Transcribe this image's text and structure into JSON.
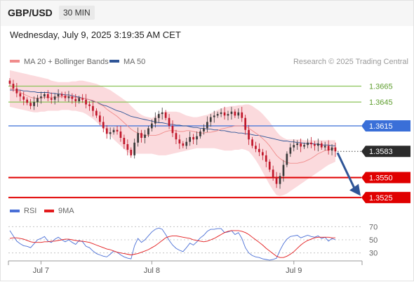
{
  "header": {
    "symbol": "GBP/USD",
    "timeframe": "30 MIN",
    "datetime": "Wednesday, July 9, 2025 3:19:35 AM CET"
  },
  "legend": {
    "ma20": {
      "label": "MA 20 + Bollinger Bands",
      "color": "#f08c8c"
    },
    "ma50": {
      "label": "MA 50",
      "color": "#2f5597"
    },
    "copyright": "Research © 2025 Trading Central"
  },
  "rsi_legend": {
    "rsi": {
      "label": "RSI",
      "color": "#4a6fd6"
    },
    "ma9": {
      "label": "9MA",
      "color": "#e31a1c"
    }
  },
  "colors": {
    "up_candle": "#3a3a3a",
    "down_candle": "#c0172a",
    "band_fill": "#fbdadd",
    "resistance_green": "#8cc35a",
    "pivot_blue": "#3a6fd8",
    "support_red": "#e00000",
    "arrow": "#2f5597"
  },
  "chart_data": [
    {
      "type": "candlestick",
      "x_labels": [
        "Jul 7",
        "Jul 8",
        "Jul 9"
      ],
      "ylim": [
        1.3516,
        1.3684
      ],
      "levels": [
        {
          "value": 1.3665,
          "label": "1.3665",
          "kind": "resistance"
        },
        {
          "value": 1.3645,
          "label": "1.3645",
          "kind": "resistance"
        },
        {
          "value": 1.3615,
          "label": "1.3615",
          "kind": "pivot"
        },
        {
          "value": 1.3583,
          "label": "1.3583",
          "kind": "last"
        },
        {
          "value": 1.355,
          "label": "1.3550",
          "kind": "support"
        },
        {
          "value": 1.3525,
          "label": "1.3525",
          "kind": "support"
        }
      ],
      "close": [
        1.3668,
        1.3662,
        1.3656,
        1.3652,
        1.3648,
        1.3644,
        1.364,
        1.3645,
        1.365,
        1.3652,
        1.3655,
        1.365,
        1.3648,
        1.3652,
        1.3655,
        1.3653,
        1.365,
        1.3652,
        1.3649,
        1.3646,
        1.365,
        1.3648,
        1.3642,
        1.364,
        1.3634,
        1.3628,
        1.362,
        1.3612,
        1.3605,
        1.3607,
        1.361,
        1.3608,
        1.36,
        1.3592,
        1.3585,
        1.3578,
        1.3594,
        1.3606,
        1.36,
        1.3604,
        1.3612,
        1.3618,
        1.3625,
        1.363,
        1.3632,
        1.3625,
        1.3615,
        1.3606,
        1.3598,
        1.3593,
        1.359,
        1.3595,
        1.3601,
        1.3598,
        1.3602,
        1.3608,
        1.3612,
        1.362,
        1.3626,
        1.3628,
        1.363,
        1.3632,
        1.3628,
        1.363,
        1.3633,
        1.3628,
        1.3632,
        1.3625,
        1.361,
        1.3598,
        1.359,
        1.3586,
        1.3582,
        1.3578,
        1.357,
        1.356,
        1.355,
        1.3542,
        1.3552,
        1.3566,
        1.358,
        1.3588,
        1.3591,
        1.3593,
        1.3589,
        1.3591,
        1.3594,
        1.3592,
        1.359,
        1.3593,
        1.3588,
        1.359,
        1.3584,
        1.3588,
        1.3583
      ],
      "ma20": [
        1.3662,
        1.3661,
        1.3659,
        1.3657,
        1.3655,
        1.3653,
        1.3651,
        1.365,
        1.365,
        1.365,
        1.3651,
        1.3651,
        1.3651,
        1.3651,
        1.3651,
        1.3652,
        1.3652,
        1.3652,
        1.3651,
        1.3651,
        1.365,
        1.365,
        1.3649,
        1.3648,
        1.3647,
        1.3645,
        1.3642,
        1.364,
        1.3636,
        1.3633,
        1.363,
        1.3627,
        1.3623,
        1.3619,
        1.3615,
        1.3611,
        1.3608,
        1.3606,
        1.3604,
        1.3603,
        1.3603,
        1.3603,
        1.3603,
        1.3604,
        1.3606,
        1.3608,
        1.3609,
        1.3609,
        1.3609,
        1.3608,
        1.3608,
        1.3609,
        1.3609,
        1.3608,
        1.3607,
        1.3606,
        1.3606,
        1.3607,
        1.3607,
        1.3608,
        1.3609,
        1.3611,
        1.3612,
        1.3613,
        1.3614,
        1.3615,
        1.3615,
        1.3615,
        1.3614,
        1.3612,
        1.3609,
        1.3606,
        1.3603,
        1.3599,
        1.3595,
        1.359,
        1.3584,
        1.3578,
        1.3574,
        1.3571,
        1.3569,
        1.3568,
        1.3568,
        1.3568,
        1.3569,
        1.357,
        1.3572,
        1.3574,
        1.3577,
        1.358,
        1.3582,
        1.3584,
        1.3585,
        1.3586,
        1.3587
      ],
      "ma50": [
        1.366,
        1.366,
        1.366,
        1.366,
        1.3659,
        1.3659,
        1.3658,
        1.3658,
        1.3657,
        1.3657,
        1.3657,
        1.3657,
        1.3656,
        1.3656,
        1.3655,
        1.3655,
        1.3654,
        1.3654,
        1.3653,
        1.3652,
        1.3651,
        1.365,
        1.3649,
        1.3648,
        1.3646,
        1.3645,
        1.3643,
        1.3641,
        1.364,
        1.3638,
        1.3636,
        1.3634,
        1.3633,
        1.3631,
        1.3629,
        1.3627,
        1.3626,
        1.3625,
        1.3624,
        1.3623,
        1.3622,
        1.3621,
        1.362,
        1.3619,
        1.3619,
        1.3618,
        1.3617,
        1.3617,
        1.3616,
        1.3616,
        1.3615,
        1.3615,
        1.3614,
        1.3613,
        1.3613,
        1.3612,
        1.3612,
        1.3611,
        1.3611,
        1.361,
        1.361,
        1.3609,
        1.3609,
        1.3608,
        1.3607,
        1.3607,
        1.3606,
        1.3606,
        1.3605,
        1.3605,
        1.3604,
        1.3603,
        1.3603,
        1.3602,
        1.3601,
        1.36,
        1.3599,
        1.3598,
        1.3597,
        1.3596,
        1.3596,
        1.3595,
        1.3595,
        1.3594,
        1.3594,
        1.3593,
        1.3593,
        1.3593,
        1.3592,
        1.3592,
        1.3591,
        1.3591,
        1.3591,
        1.359,
        1.359
      ],
      "bb_upper": [
        1.3685,
        1.3684,
        1.3683,
        1.3682,
        1.3681,
        1.368,
        1.3679,
        1.3678,
        1.3677,
        1.3676,
        1.3675,
        1.3674,
        1.3672,
        1.3671,
        1.367,
        1.367,
        1.367,
        1.367,
        1.3671,
        1.3671,
        1.3672,
        1.3672,
        1.3671,
        1.367,
        1.3669,
        1.3668,
        1.3666,
        1.3664,
        1.3662,
        1.366,
        1.3657,
        1.3654,
        1.3651,
        1.3648,
        1.3645,
        1.364,
        1.3636,
        1.3632,
        1.3629,
        1.3627,
        1.3626,
        1.3625,
        1.3627,
        1.363,
        1.3632,
        1.3633,
        1.3633,
        1.3633,
        1.3633,
        1.3632,
        1.363,
        1.3628,
        1.3627,
        1.3626,
        1.3626,
        1.3627,
        1.3628,
        1.3629,
        1.3631,
        1.3633,
        1.3635,
        1.3637,
        1.3638,
        1.3639,
        1.364,
        1.364,
        1.3641,
        1.3641,
        1.3642,
        1.3642,
        1.364,
        1.3637,
        1.3634,
        1.363,
        1.3625,
        1.362,
        1.3614,
        1.3608,
        1.3603,
        1.36,
        1.3598,
        1.3598,
        1.3598,
        1.3598,
        1.3598,
        1.3597,
        1.3597,
        1.3597,
        1.3597,
        1.3597,
        1.3597,
        1.3597,
        1.3597,
        1.3597,
        1.3597
      ],
      "bb_lower": [
        1.3639,
        1.3638,
        1.3637,
        1.3636,
        1.3635,
        1.3634,
        1.3633,
        1.3632,
        1.3632,
        1.3633,
        1.3633,
        1.3634,
        1.3634,
        1.3634,
        1.3634,
        1.3635,
        1.3635,
        1.3635,
        1.3634,
        1.3634,
        1.3633,
        1.3632,
        1.363,
        1.3627,
        1.3624,
        1.362,
        1.3616,
        1.3612,
        1.3608,
        1.3603,
        1.3598,
        1.3594,
        1.359,
        1.3586,
        1.3582,
        1.358,
        1.358,
        1.358,
        1.358,
        1.358,
        1.358,
        1.358,
        1.3579,
        1.3578,
        1.3578,
        1.3578,
        1.3579,
        1.358,
        1.3581,
        1.3582,
        1.3583,
        1.3584,
        1.3585,
        1.3586,
        1.3587,
        1.3587,
        1.3587,
        1.3587,
        1.3587,
        1.3587,
        1.3586,
        1.3585,
        1.3584,
        1.3584,
        1.3584,
        1.3585,
        1.3585,
        1.3586,
        1.3585,
        1.3583,
        1.3578,
        1.3572,
        1.3565,
        1.3557,
        1.3549,
        1.3541,
        1.3534,
        1.3528,
        1.3527,
        1.3528,
        1.353,
        1.3533,
        1.3536,
        1.3539,
        1.3542,
        1.3545,
        1.3548,
        1.3551,
        1.3554,
        1.3557,
        1.356,
        1.3563,
        1.3566,
        1.3568,
        1.357
      ]
    },
    {
      "type": "line",
      "title": "RSI",
      "ylim": [
        20,
        80
      ],
      "y_ticks": [
        70,
        50,
        30
      ],
      "x_labels": [
        "Jul 7",
        "Jul 8",
        "Jul 9"
      ],
      "series": [
        {
          "name": "RSI",
          "values": [
            64,
            56,
            48,
            44,
            41,
            40,
            38,
            44,
            50,
            52,
            55,
            48,
            46,
            51,
            54,
            50,
            47,
            50,
            46,
            43,
            49,
            47,
            40,
            38,
            33,
            29,
            27,
            25,
            24,
            28,
            33,
            31,
            27,
            24,
            22,
            21,
            41,
            52,
            46,
            50,
            56,
            62,
            66,
            68,
            66,
            58,
            49,
            42,
            37,
            34,
            32,
            38,
            45,
            42,
            47,
            53,
            57,
            63,
            66,
            66,
            67,
            67,
            61,
            62,
            64,
            58,
            61,
            52,
            38,
            30,
            26,
            24,
            23,
            21,
            20,
            19,
            20,
            22,
            34,
            44,
            51,
            55,
            56,
            57,
            53,
            55,
            57,
            55,
            54,
            56,
            52,
            54,
            48,
            52,
            50
          ]
        },
        {
          "name": "9MA",
          "values": [
            52,
            53,
            53,
            52,
            51,
            49,
            47,
            46,
            46,
            46,
            47,
            47,
            48,
            48,
            49,
            50,
            51,
            51,
            50,
            49,
            48,
            48,
            47,
            46,
            44,
            42,
            40,
            38,
            36,
            35,
            33,
            31,
            30,
            29,
            28,
            27,
            28,
            29,
            31,
            33,
            35,
            38,
            41,
            45,
            49,
            53,
            55,
            56,
            56,
            55,
            54,
            53,
            52,
            50,
            49,
            48,
            47,
            48,
            50,
            52,
            55,
            58,
            61,
            63,
            64,
            64,
            64,
            63,
            61,
            58,
            54,
            50,
            46,
            42,
            37,
            33,
            29,
            25,
            23,
            23,
            25,
            28,
            32,
            37,
            42,
            46,
            49,
            51,
            53,
            54,
            54,
            54,
            54,
            53,
            53
          ]
        }
      ]
    }
  ]
}
